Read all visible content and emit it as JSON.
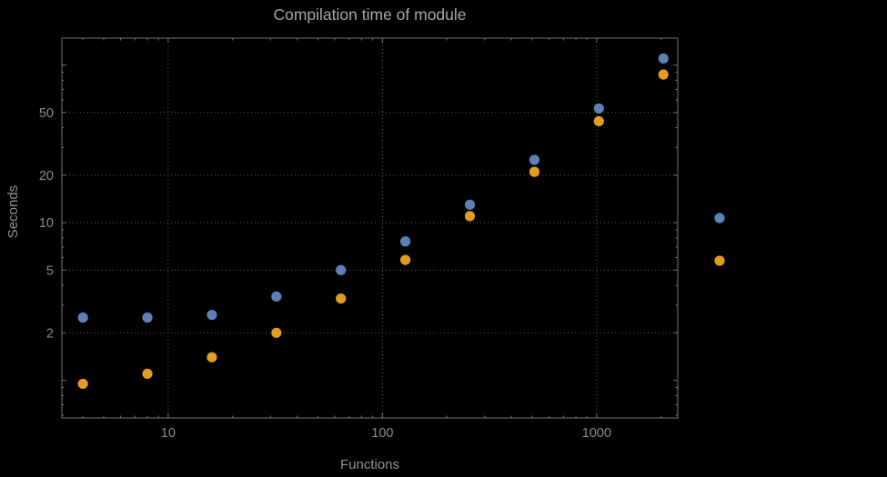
{
  "chart_data": {
    "type": "scatter",
    "title": "Compilation time of module",
    "xlabel": "Functions",
    "ylabel": "Seconds",
    "x_scale": "log",
    "y_scale": "log",
    "xlim": [
      3.19,
      2390
    ],
    "ylim": [
      0.577,
      148
    ],
    "x_ticks": [
      10,
      100,
      1000
    ],
    "x_tick_labels": [
      "10",
      "100",
      "1000"
    ],
    "y_ticks": [
      2,
      5,
      10,
      20,
      50
    ],
    "y_tick_labels": [
      "2",
      "5",
      "10",
      "20",
      "50"
    ],
    "grid": true,
    "grid_style": "dotted",
    "x": [
      4,
      8,
      16,
      32,
      64,
      128,
      256,
      512,
      1024,
      2048
    ],
    "series": [
      {
        "name": "blue",
        "color": "#5e81b5",
        "values": [
          2.5,
          2.5,
          2.6,
          3.4,
          5.0,
          7.6,
          13,
          25,
          53,
          110
        ]
      },
      {
        "name": "orange",
        "color": "#e19c24",
        "values": [
          0.95,
          1.1,
          1.4,
          2.0,
          3.3,
          5.8,
          11,
          21,
          44,
          87
        ]
      }
    ],
    "legend": {
      "position": "right-outside",
      "markers": [
        {
          "name": "blue",
          "color": "#5e81b5",
          "label": ""
        },
        {
          "name": "orange",
          "color": "#e19c24",
          "label": ""
        }
      ]
    },
    "colors": {
      "background": "#000000",
      "frame": "#747474",
      "grid": "#5e5e5e",
      "tick_label": "#8b8b8b",
      "title": "#a6a6a6",
      "axis_label": "#919191",
      "series_blue": "#5e81b5",
      "series_orange": "#e19c24"
    }
  }
}
